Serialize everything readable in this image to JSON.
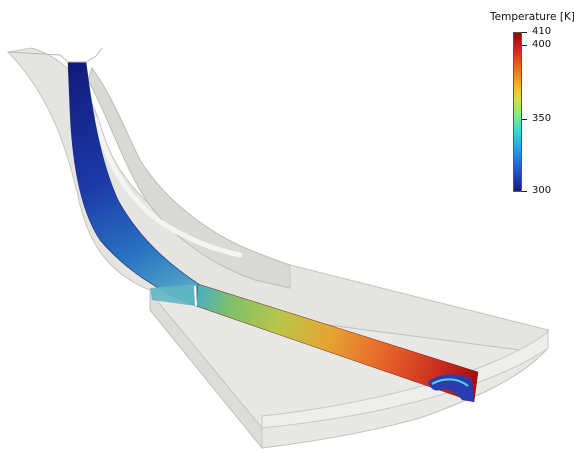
{
  "colorbar": {
    "title": "Temperature [K]",
    "max_label": "410",
    "labels": [
      "400",
      "350",
      "300"
    ],
    "min": 300,
    "max": 410
  },
  "colors": {
    "background": "#ffffff",
    "shroud": "#e6e6e3",
    "edge": "#bdbdb9",
    "cold": "#10198a",
    "hot": "#a60a10"
  }
}
